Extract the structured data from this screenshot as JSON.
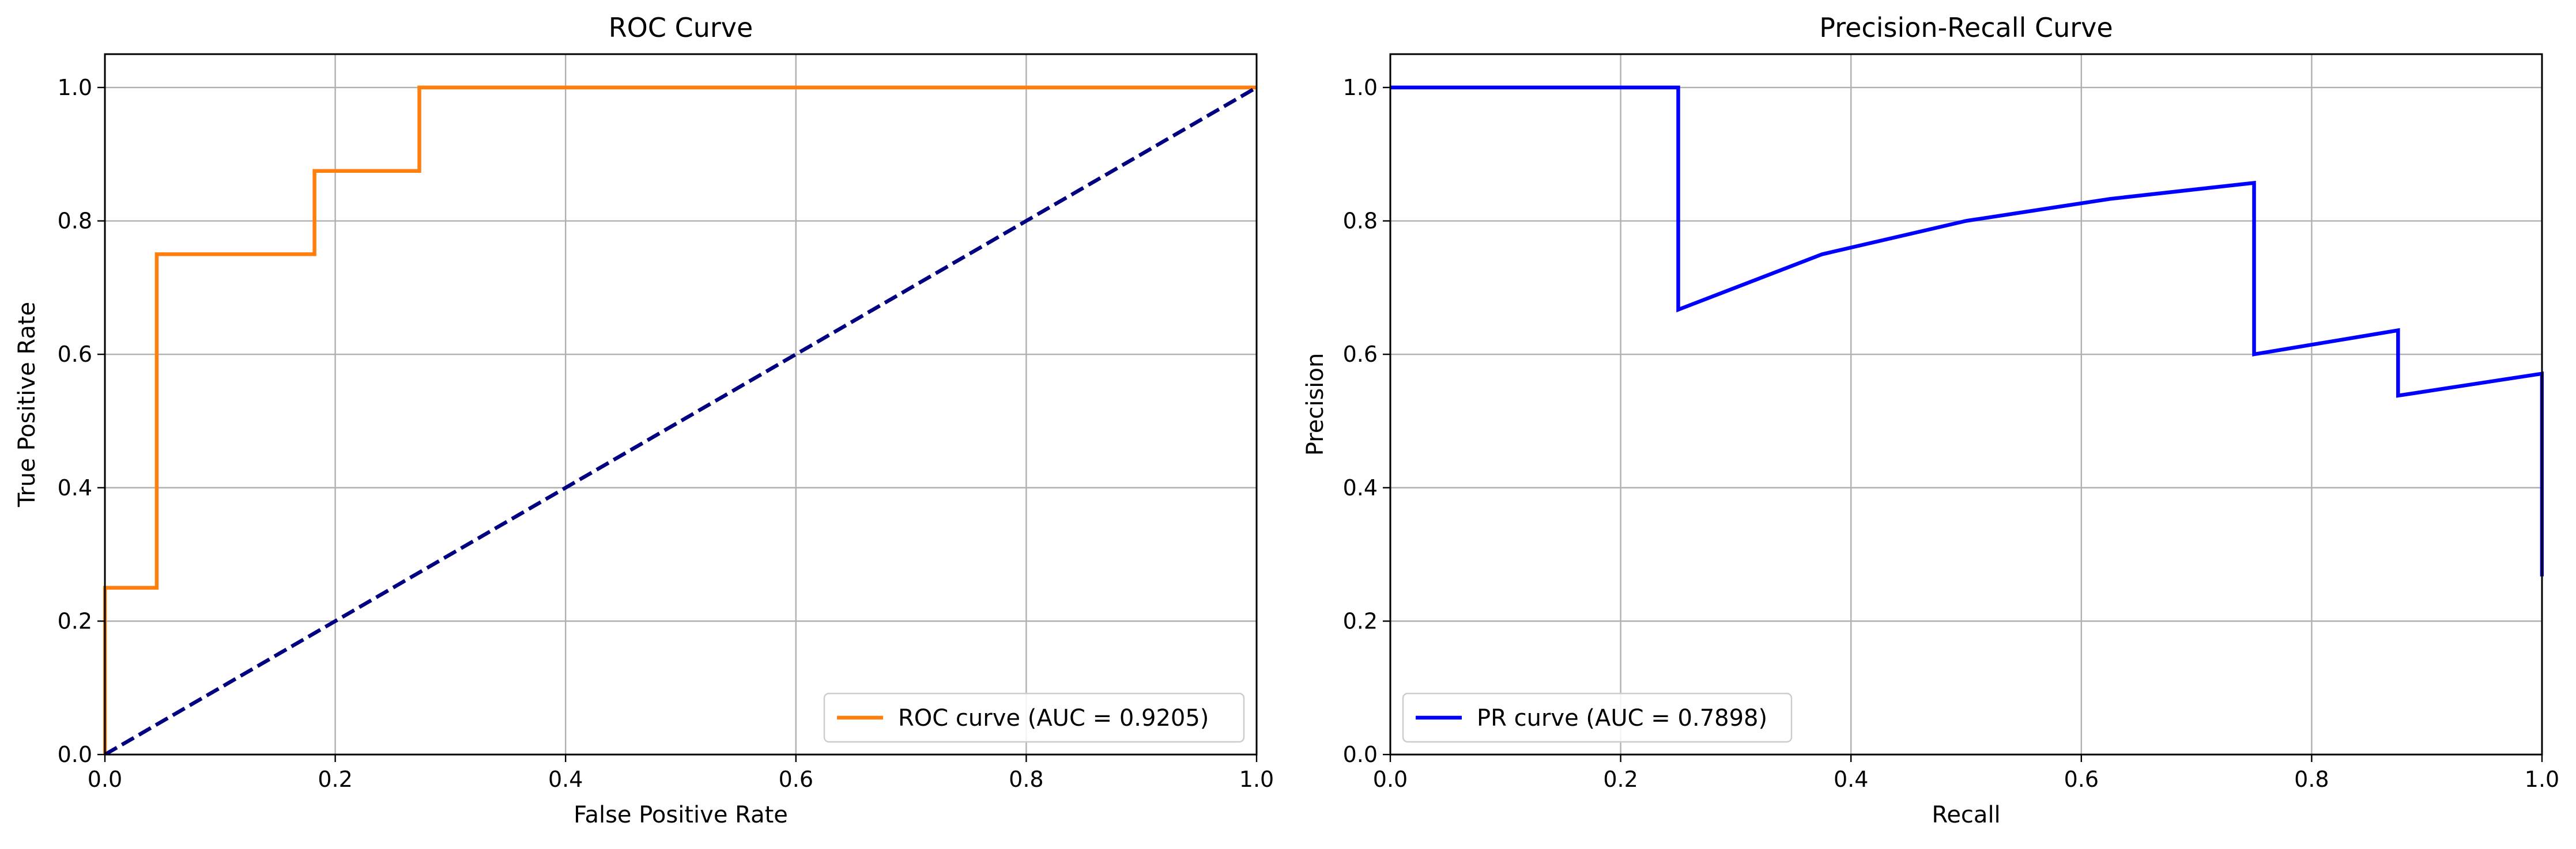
{
  "chart_data": [
    {
      "type": "line",
      "title": "ROC Curve",
      "xlabel": "False Positive Rate",
      "ylabel": "True Positive Rate",
      "xlim": [
        0,
        1
      ],
      "ylim": [
        0,
        1.05
      ],
      "xticks": [
        "0.0",
        "0.2",
        "0.4",
        "0.6",
        "0.8",
        "1.0"
      ],
      "yticks": [
        "0.0",
        "0.2",
        "0.4",
        "0.6",
        "0.8",
        "1.0"
      ],
      "grid": true,
      "legend_position": "lower right",
      "series": [
        {
          "name": "ROC curve (AUC = 0.9205)",
          "color": "#ff7f0e",
          "style": "solid",
          "x": [
            0,
            0,
            0.045,
            0.045,
            0.182,
            0.182,
            0.273,
            0.273,
            1.0
          ],
          "y": [
            0,
            0.25,
            0.25,
            0.75,
            0.75,
            0.875,
            0.875,
            1.0,
            1.0
          ]
        },
        {
          "color": "#000080",
          "style": "dashed",
          "x": [
            0,
            1
          ],
          "y": [
            0,
            1
          ]
        }
      ]
    },
    {
      "type": "line",
      "title": "Precision-Recall Curve",
      "xlabel": "Recall",
      "ylabel": "Precision",
      "xlim": [
        0,
        1
      ],
      "ylim": [
        0,
        1.05
      ],
      "xticks": [
        "0.0",
        "0.2",
        "0.4",
        "0.6",
        "0.8",
        "1.0"
      ],
      "yticks": [
        "0.0",
        "0.2",
        "0.4",
        "0.6",
        "0.8",
        "1.0"
      ],
      "grid": true,
      "legend_position": "lower left",
      "series": [
        {
          "name": "PR curve (AUC = 0.7898)",
          "color": "#0000ff",
          "style": "solid",
          "x": [
            0,
            0.25,
            0.25,
            0.375,
            0.5,
            0.625,
            0.75,
            0.75,
            0.875,
            0.875,
            1.0,
            1.0
          ],
          "y": [
            1.0,
            1.0,
            0.667,
            0.75,
            0.8,
            0.833,
            0.857,
            0.6,
            0.636,
            0.538,
            0.571,
            0.267
          ]
        }
      ]
    }
  ]
}
